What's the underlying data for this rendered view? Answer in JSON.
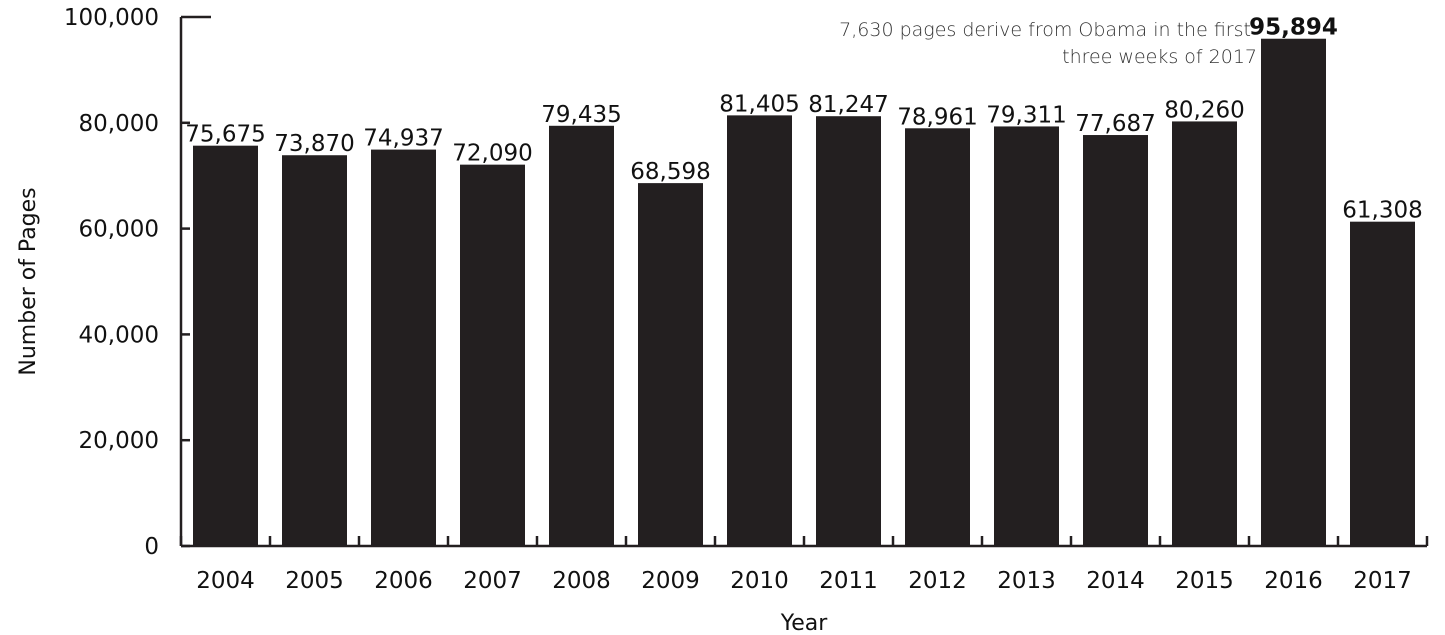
{
  "chart_data": {
    "type": "bar",
    "categories": [
      "2004",
      "2005",
      "2006",
      "2007",
      "2008",
      "2009",
      "2010",
      "2011",
      "2012",
      "2013",
      "2014",
      "2015",
      "2016",
      "2017"
    ],
    "values": [
      75675,
      73870,
      74937,
      72090,
      79435,
      68598,
      81405,
      81247,
      78961,
      79311,
      77687,
      80260,
      95894,
      61308
    ],
    "data_labels": [
      "75,675",
      "73,870",
      "74,937",
      "72,090",
      "79,435",
      "68,598",
      "81,405",
      "81,247",
      "78,961",
      "79,311",
      "77,687",
      "80,260",
      "95,894",
      "61,308"
    ],
    "xlabel": "Year",
    "ylabel": "Number of Pages",
    "ylim": [
      0,
      100000
    ],
    "yticks": [
      0,
      20000,
      40000,
      60000,
      80000,
      100000
    ],
    "ytick_labels": [
      "0",
      "20,000",
      "40,000",
      "60,000",
      "80,000",
      "100,000"
    ],
    "bar_color": "#231f20",
    "grid": false,
    "annotation": {
      "lines": [
        "7,630 pages derive from Obama in the first",
        "three weeks of 2017"
      ],
      "category": "2016"
    }
  }
}
